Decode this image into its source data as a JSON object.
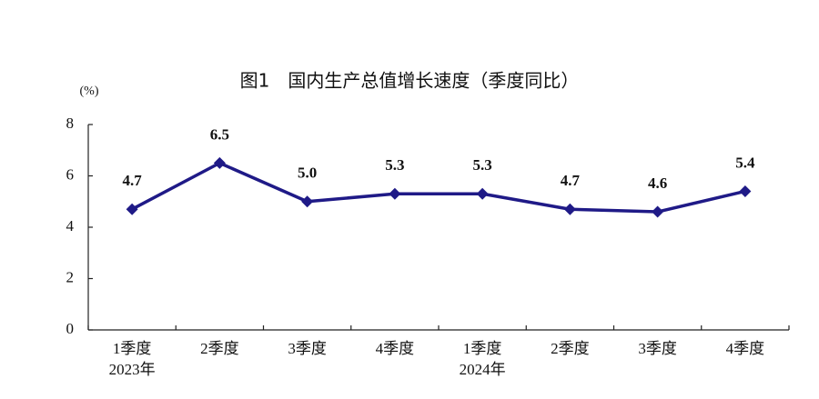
{
  "chart_data": {
    "type": "line",
    "title": "图1　国内生产总值增长速度（季度同比）",
    "y_label": "(%)",
    "categories": [
      "1季度",
      "2季度",
      "3季度",
      "4季度",
      "1季度",
      "2季度",
      "3季度",
      "4季度"
    ],
    "group_labels": [
      "2023年",
      null,
      null,
      null,
      "2024年",
      null,
      null,
      null
    ],
    "values": [
      4.7,
      6.5,
      5.0,
      5.3,
      5.3,
      4.7,
      4.6,
      5.4
    ],
    "value_labels": [
      "4.7",
      "6.5",
      "5.0",
      "5.3",
      "5.3",
      "4.7",
      "4.6",
      "5.4"
    ],
    "color": "#1f1a87",
    "ylim": [
      0,
      8
    ],
    "yticks": [
      0,
      2,
      4,
      6,
      8
    ]
  }
}
